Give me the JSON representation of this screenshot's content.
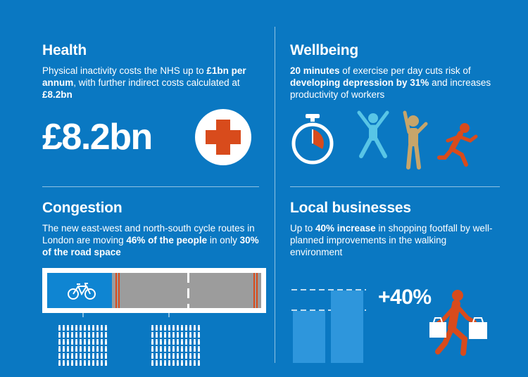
{
  "health": {
    "title": "Health",
    "desc_pre": "Physical inactivity costs the NHS up to ",
    "desc_bold1": "£1bn per annum",
    "desc_mid": ", with further indirect costs calculated at ",
    "desc_bold2": "£8.2bn",
    "amount": "£8.2bn",
    "icon": "red-cross-icon"
  },
  "wellbeing": {
    "title": "Wellbeing",
    "desc_bold1": "20 minutes",
    "desc_mid1": " of exercise per day cuts risk of ",
    "desc_bold2": "developing depression by 31%",
    "desc_end": " and increases productivity of workers",
    "icons": [
      "stopwatch-icon",
      "jumping-figure-icon",
      "stretching-figure-icon",
      "running-figure-icon"
    ]
  },
  "congestion": {
    "title": "Congestion",
    "desc_pre": "The new east-west and north-south cycle routes in London are moving ",
    "desc_bold1": "46% of the people",
    "desc_mid": " in only ",
    "desc_bold2": "30% of the road space",
    "icons": [
      "road-diagram",
      "bicycle-icon",
      "people-group-icon"
    ]
  },
  "local": {
    "title": "Local businesses",
    "desc_pre": "Up to ",
    "desc_bold": "40% increase",
    "desc_end": " in shopping footfall by well-planned improvements in the walking environment",
    "increase": "+40%",
    "icons": [
      "bar-chart-icon",
      "shopper-walking-icon"
    ]
  },
  "colors": {
    "background": "#0a78c2",
    "accent_red": "#d84b1c",
    "gold": "#c7a56a",
    "cyan": "#58c5e6"
  }
}
